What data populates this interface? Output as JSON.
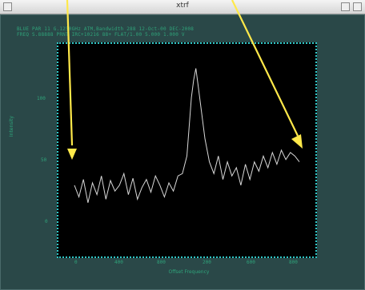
{
  "window": {
    "title": "xtrf"
  },
  "header": {
    "line1": "BLUE  PAR 11  G.1250GHz  ATM,Bandwidth 288  12-Oct-00  DEC-2008",
    "line2": "FREQ   S.88888  PRNT  IRC+10216   88+   FLAT/1.00  5.000 1.000  V"
  },
  "axes": {
    "xlabel": "Offset Frequency",
    "ylabel": "Intensity",
    "xticks": [
      "0",
      "400",
      "800",
      "200",
      "600",
      "800"
    ],
    "yticks": [
      "100",
      "50",
      "0"
    ]
  },
  "chart_data": {
    "type": "line",
    "xlabel": "Offset Frequency",
    "ylabel": "Intensity",
    "xlim": [
      0,
      1000
    ],
    "ylim": [
      -20,
      140
    ],
    "grid": false,
    "series": [
      {
        "values": [
          [
            0,
            30
          ],
          [
            20,
            20
          ],
          [
            40,
            35
          ],
          [
            60,
            15
          ],
          [
            80,
            32
          ],
          [
            100,
            22
          ],
          [
            120,
            38
          ],
          [
            140,
            18
          ],
          [
            160,
            34
          ],
          [
            180,
            25
          ],
          [
            200,
            30
          ],
          [
            220,
            40
          ],
          [
            240,
            22
          ],
          [
            260,
            36
          ],
          [
            280,
            18
          ],
          [
            300,
            28
          ],
          [
            320,
            35
          ],
          [
            340,
            24
          ],
          [
            360,
            38
          ],
          [
            380,
            30
          ],
          [
            400,
            20
          ],
          [
            420,
            32
          ],
          [
            440,
            25
          ],
          [
            460,
            38
          ],
          [
            480,
            40
          ],
          [
            500,
            55
          ],
          [
            510,
            80
          ],
          [
            520,
            105
          ],
          [
            530,
            120
          ],
          [
            540,
            130
          ],
          [
            550,
            115
          ],
          [
            560,
            100
          ],
          [
            570,
            85
          ],
          [
            580,
            70
          ],
          [
            590,
            60
          ],
          [
            600,
            50
          ],
          [
            620,
            40
          ],
          [
            640,
            55
          ],
          [
            660,
            35
          ],
          [
            680,
            50
          ],
          [
            700,
            38
          ],
          [
            720,
            45
          ],
          [
            740,
            30
          ],
          [
            760,
            48
          ],
          [
            780,
            35
          ],
          [
            800,
            50
          ],
          [
            820,
            42
          ],
          [
            840,
            55
          ],
          [
            860,
            45
          ],
          [
            880,
            58
          ],
          [
            900,
            48
          ],
          [
            920,
            60
          ],
          [
            940,
            52
          ],
          [
            960,
            58
          ],
          [
            980,
            55
          ],
          [
            1000,
            50
          ]
        ]
      }
    ]
  },
  "colors": {
    "window_bg": "#2a4848",
    "text": "#2fa37a",
    "frame": "#2fc6c6",
    "trace": "#d8d8d8",
    "arrow": "#ffe94a"
  }
}
